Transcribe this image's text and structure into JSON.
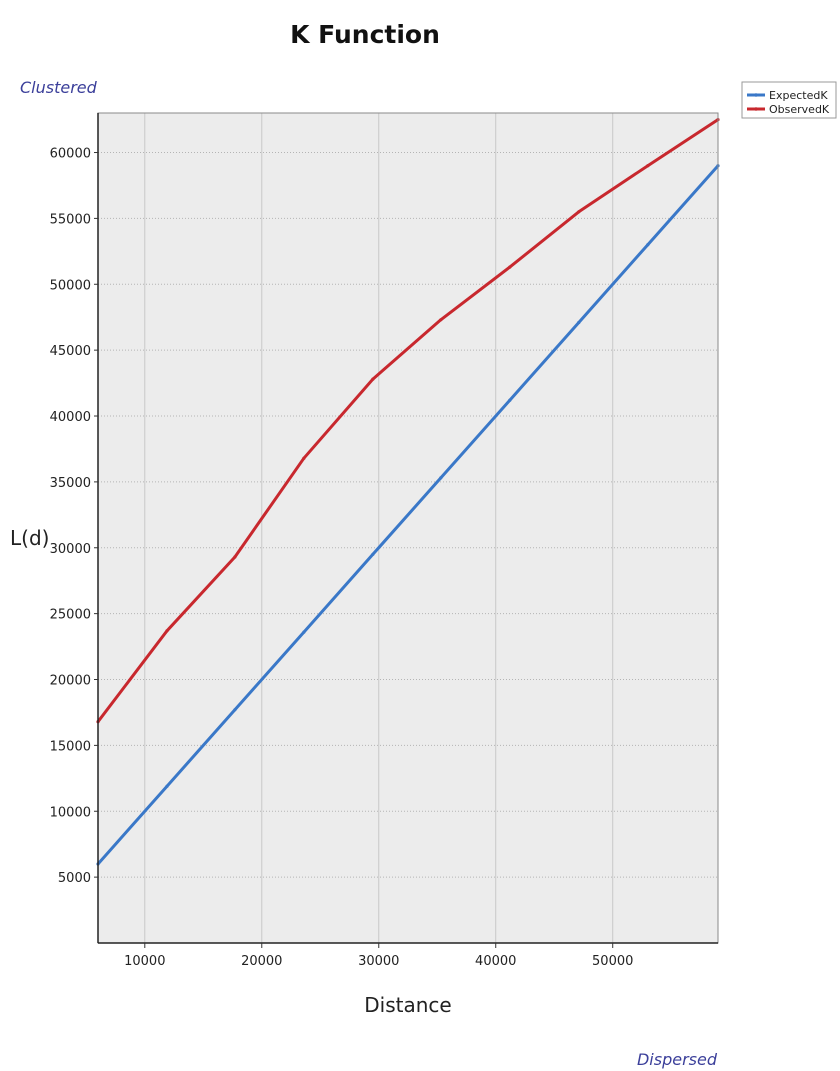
{
  "chart_data": {
    "type": "line",
    "title": "K Function",
    "xlabel": "Distance",
    "ylabel": "L(d)",
    "top_annotation": "Clustered",
    "bottom_annotation": "Dispersed",
    "xlim": [
      6000,
      59000
    ],
    "ylim": [
      0,
      63000
    ],
    "x_ticks": [
      10000,
      20000,
      30000,
      40000,
      50000
    ],
    "y_ticks": [
      5000,
      10000,
      15000,
      20000,
      25000,
      30000,
      35000,
      40000,
      45000,
      50000,
      55000,
      60000
    ],
    "grid": true,
    "legend_position": "top-right",
    "series": [
      {
        "name": "ExpectedK",
        "color": "#3a78c8",
        "x": [
          6000,
          11900,
          17700,
          23600,
          29500,
          35300,
          41200,
          47100,
          53000,
          59000
        ],
        "y": [
          6000,
          11900,
          17700,
          23600,
          29500,
          35300,
          41200,
          47100,
          53000,
          59000
        ]
      },
      {
        "name": "ObservedK",
        "color": "#c8282e",
        "x": [
          6000,
          11900,
          17700,
          23600,
          29500,
          35300,
          41200,
          47100,
          53000,
          59000
        ],
        "y": [
          16800,
          23700,
          29300,
          36800,
          42800,
          47300,
          51300,
          55500,
          59000,
          62500
        ]
      }
    ]
  }
}
